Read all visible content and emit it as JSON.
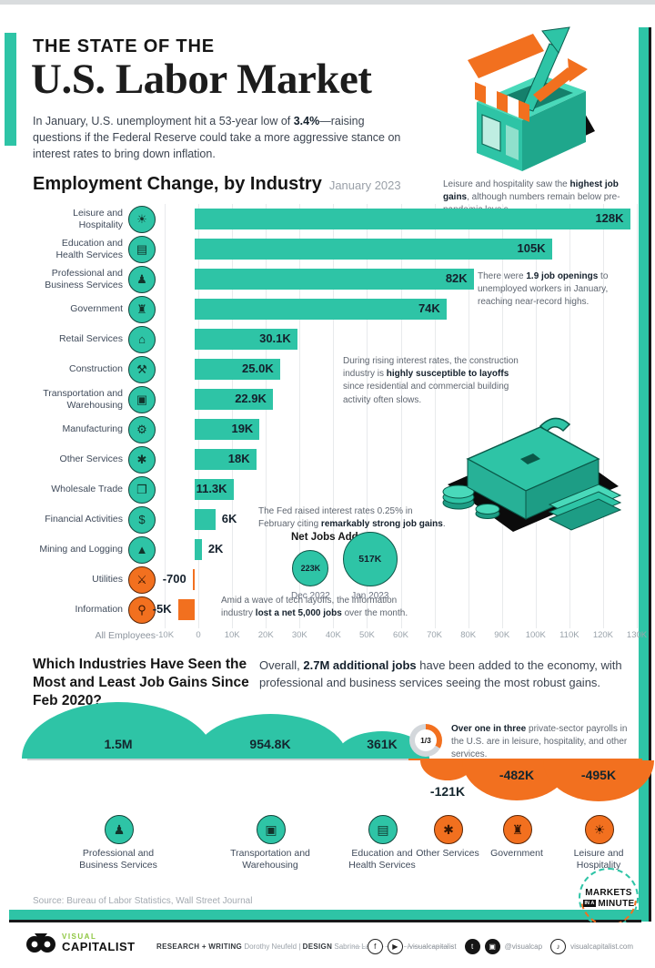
{
  "colors": {
    "teal": "#2EC4A6",
    "orange": "#F2701F",
    "dark": "#161616"
  },
  "header": {
    "kicker": "THE STATE OF THE",
    "title": "U.S. Labor Market",
    "intro_segments": [
      {
        "t": "In January, U.S. unemployment hit a 53-year low of "
      },
      {
        "t": "3.4%",
        "b": true
      },
      {
        "t": "—raising questions if the Federal Reserve could take a more aggressive stance on interest rates to bring down inflation."
      }
    ]
  },
  "section1": {
    "title": "Employment Change, by Industry",
    "subtitle": "January 2023",
    "axis_left_label": "All Employees",
    "annotations": {
      "leisure": [
        {
          "t": "Leisure and hospitality saw the "
        },
        {
          "t": "highest job gains",
          "b": true
        },
        {
          "t": ", although numbers remain below pre-pandemic levels."
        }
      ],
      "openings": [
        {
          "t": "There were "
        },
        {
          "t": "1.9 job openings",
          "b": true
        },
        {
          "t": " to unemployed workers in January, reaching near-record highs."
        }
      ],
      "construction": [
        {
          "t": "During rising interest rates, the construction industry is "
        },
        {
          "t": "highly susceptible to layoffs",
          "b": true
        },
        {
          "t": " since residential and commercial building activity often slows."
        }
      ],
      "fed": [
        {
          "t": "The Fed raised interest rates 0.25% in February citing "
        },
        {
          "t": "remarkably strong job gains",
          "b": true
        },
        {
          "t": "."
        }
      ],
      "information": [
        {
          "t": "Amid a wave of tech layoffs, the information industry "
        },
        {
          "t": "lost a net 5,000 jobs",
          "b": true
        },
        {
          "t": " over the month."
        }
      ]
    }
  },
  "section2": {
    "heading": "Which Industries Have Seen the Most and Least Job Gains Since Feb 2020?",
    "overview_segments": [
      {
        "t": "Overall, "
      },
      {
        "t": "2.7M additional jobs",
        "b": true
      },
      {
        "t": " have been added to the economy, with professional and business services seeing the most robust gains."
      }
    ],
    "callout": {
      "fraction": "1/3",
      "segments": [
        {
          "t": "Over one in three",
          "b": true
        },
        {
          "t": " private-sector payrolls in the U.S. are in leisure, hospitality, and other services."
        }
      ]
    }
  },
  "chart_data": [
    {
      "type": "bar",
      "title": "Employment Change, by Industry",
      "subtitle": "January 2023",
      "orientation": "horizontal",
      "unit": "thousands of jobs",
      "xlim_k": [
        -10,
        130
      ],
      "x_ticks": [
        "-10K",
        "0",
        "10K",
        "20K",
        "30K",
        "40K",
        "50K",
        "60K",
        "70K",
        "80K",
        "90K",
        "100K",
        "110K",
        "120K",
        "130K"
      ],
      "categories": [
        "Leisure and Hospitality",
        "Education and Health Services",
        "Professional and Business Services",
        "Government",
        "Retail Services",
        "Construction",
        "Transportation and Warehousing",
        "Manufacturing",
        "Other Services",
        "Wholesale Trade",
        "Financial Activities",
        "Mining and Logging",
        "Utilities",
        "Information"
      ],
      "values_k": [
        128,
        105,
        82,
        74,
        30.1,
        25.0,
        22.9,
        19,
        18,
        11.3,
        6,
        2,
        -0.7,
        -5
      ],
      "labels": [
        "128K",
        "105K",
        "82K",
        "74K",
        "30.1K",
        "25.0K",
        "22.9K",
        "19K",
        "18K",
        "11.3K",
        "6K",
        "2K",
        "-700",
        "-5K"
      ],
      "icons": [
        {
          "name": "palm-tree-icon",
          "glyph": "☀"
        },
        {
          "name": "books-icon",
          "glyph": "▤"
        },
        {
          "name": "people-icon",
          "glyph": "♟"
        },
        {
          "name": "government-building-icon",
          "glyph": "♜"
        },
        {
          "name": "shopping-bag-icon",
          "glyph": "⌂"
        },
        {
          "name": "crane-icon",
          "glyph": "⚒"
        },
        {
          "name": "truck-icon",
          "glyph": "▣"
        },
        {
          "name": "factory-gear-icon",
          "glyph": "⚙"
        },
        {
          "name": "services-gear-icon",
          "glyph": "✱"
        },
        {
          "name": "box-truck-icon",
          "glyph": "❒"
        },
        {
          "name": "money-bag-icon",
          "glyph": "$"
        },
        {
          "name": "derrick-icon",
          "glyph": "▲"
        },
        {
          "name": "crossed-tools-icon",
          "glyph": "⚔"
        },
        {
          "name": "magnifier-icon",
          "glyph": "⚲"
        }
      ],
      "positive_color": "#2EC4A6",
      "negative_color": "#F2701F",
      "grid": true
    },
    {
      "type": "bubble",
      "title": "Net Jobs Added",
      "points": [
        {
          "label": "Dec 2022",
          "value_k": 223,
          "value": "223K"
        },
        {
          "label": "Jan 2023",
          "value_k": 517,
          "value": "517K"
        }
      ]
    },
    {
      "type": "area",
      "subtype": "semicircle-bubbles",
      "title": "Job Gains Since Feb 2020",
      "items": [
        {
          "name": "Professional and Business Services",
          "label": "1.5M",
          "value_k": 1500,
          "icon": "people-icon",
          "glyph": "♟"
        },
        {
          "name": "Transportation and Warehousing",
          "label": "954.8K",
          "value_k": 954.8,
          "icon": "truck-icon",
          "glyph": "▣"
        },
        {
          "name": "Education and Health Services",
          "label": "361K",
          "value_k": 361,
          "icon": "books-icon",
          "glyph": "▤"
        },
        {
          "name": "Other Services",
          "label": "-121K",
          "value_k": -121,
          "icon": "services-gear-icon",
          "glyph": "✱"
        },
        {
          "name": "Government",
          "label": "-482K",
          "value_k": -482,
          "icon": "government-building-icon",
          "glyph": "♜"
        },
        {
          "name": "Leisure and Hospitality",
          "label": "-495K",
          "value_k": -495,
          "icon": "palm-tree-icon",
          "glyph": "☀"
        }
      ]
    }
  ],
  "source": "Source: Bureau of Labor Statistics, Wall Street Journal",
  "brand": {
    "markets_word": "MARKETS",
    "in_a_chip": "IN A",
    "minute_word": "MINUTE",
    "vc_visual": "VISUAL",
    "vc_capitalist": "CAPITALIST",
    "credits": {
      "research_label": "RESEARCH + WRITING",
      "research_name": "Dorothy Neufeld",
      "divider": "|",
      "design_label": "DESIGN",
      "design_name": "Sabrina Lam"
    },
    "social": [
      {
        "icons": [
          {
            "name": "facebook-icon",
            "glyph": "f",
            "fill": false
          },
          {
            "name": "youtube-icon",
            "glyph": "▶",
            "fill": false
          }
        ],
        "handle": "/visualcapitalist"
      },
      {
        "icons": [
          {
            "name": "twitter-icon",
            "glyph": "t",
            "fill": true
          },
          {
            "name": "instagram-icon",
            "glyph": "▣",
            "fill": true
          }
        ],
        "handle": "@visualcap"
      },
      {
        "icons": [
          {
            "name": "tiktok-icon",
            "glyph": "♪",
            "fill": false
          }
        ],
        "handle": "visualcapitalist.com"
      }
    ]
  }
}
